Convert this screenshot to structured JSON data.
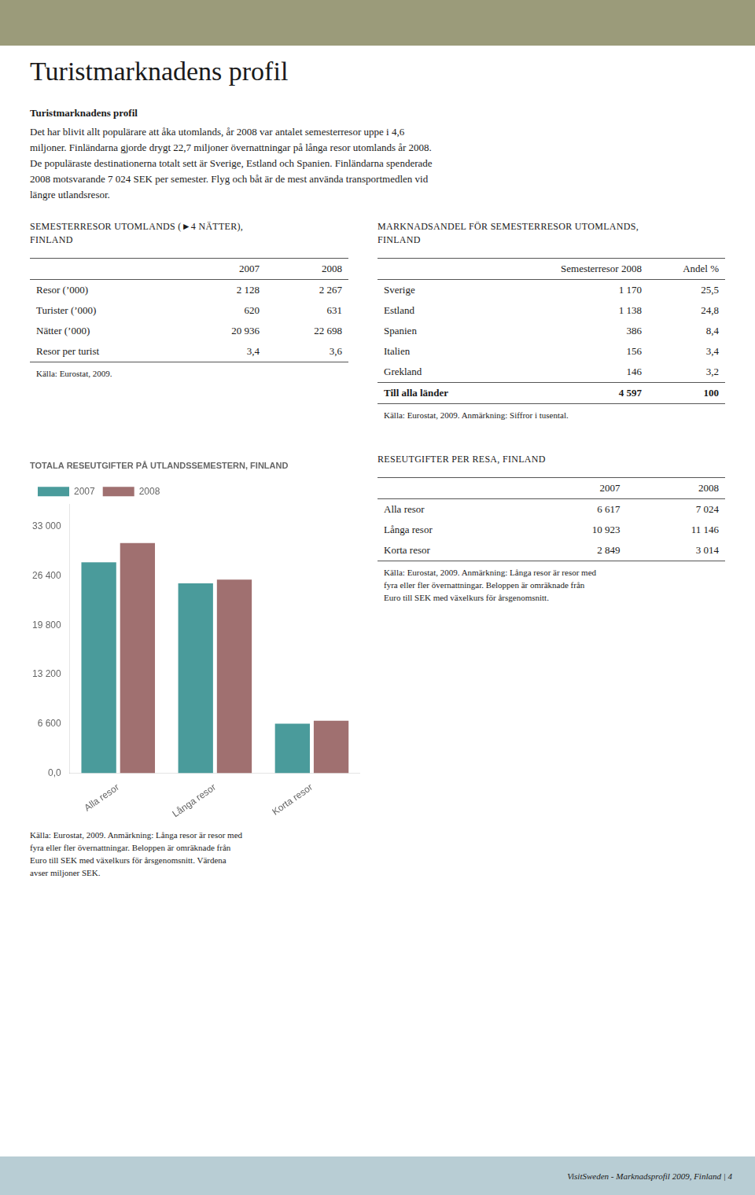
{
  "chart_data": {
    "type": "bar",
    "title": "TOTALA RESEUTGIFTER PÅ UTLANDSSEMESTERN, FINLAND",
    "categories": [
      "Alla resor",
      "Långa resor",
      "Korta resor"
    ],
    "series": [
      {
        "name": "2007",
        "color": "#4a9b9b",
        "values": [
          28217,
          25393,
          6617
        ]
      },
      {
        "name": "2008",
        "color": "#a07070",
        "values": [
          30800,
          25900,
          7024
        ]
      }
    ],
    "ylim": [
      0,
      36000
    ],
    "yticks": [
      {
        "value": 0,
        "label": "0,0"
      },
      {
        "value": 6600,
        "label": "6 600"
      },
      {
        "value": 13200,
        "label": "13 200"
      },
      {
        "value": 19800,
        "label": "19 800"
      },
      {
        "value": 26400,
        "label": "26 400"
      },
      {
        "value": 33000,
        "label": "33 000"
      }
    ],
    "grid": false,
    "legend": "upper left",
    "annotations": [
      "Källa: Eurostat, 2009. Anmärkning: Långa resor är resor med",
      "fyra eller fler övernattningar. Beloppen är omräknade från",
      "Euro till SEK med växelkurs för årsgenomsnitt. Värdena",
      "avser miljoner SEK."
    ]
  },
  "page": {
    "title": "Turistmarknadens profil",
    "intro_bold": "Turistmarknadens profil",
    "intro_lines": [
      "Det har blivit allt populärare att åka utomlands, år 2008 var antalet semesterresor uppe i 4,6",
      "miljoner. Finländarna gjorde drygt 22,7 miljoner övernattningar på långa resor utomlands år 2008.",
      "De populäraste destinationerna totalt sett är Sverige, Estland och Spanien. Finländarna spenderade",
      "2008 motsvarande 7 024 SEK per semester. Flyg och båt är de mest använda transportmedlen vid",
      "längre utlandsresor."
    ],
    "table1": {
      "title": [
        "SEMESTERRESOR UTOMLANDS (►4 NÄTTER),",
        "FINLAND"
      ],
      "headers": [
        "2007",
        "2008"
      ],
      "rows": [
        [
          "Resor (’000)",
          "2 128",
          "2 267"
        ],
        [
          "Turister (’000)",
          "620",
          "631"
        ],
        [
          "Nätter (’000)",
          "20 936",
          "22 698"
        ],
        [
          "Resor per turist",
          "3,4",
          "3,6"
        ]
      ],
      "note": [
        "Källa: Eurostat, 2009."
      ]
    },
    "table2": {
      "title": [
        "MARKNADSANDEL FÖR SEMESTERRESOR UTOMLANDS,",
        "FINLAND"
      ],
      "headers": [
        "Semesterresor 2008",
        "Andel %"
      ],
      "rows": [
        [
          "Sverige",
          "1 170",
          "25,5"
        ],
        [
          "Estland",
          "1 138",
          "24,8"
        ],
        [
          "Spanien",
          "386",
          "8,4"
        ],
        [
          "Italien",
          "156",
          "3,4"
        ],
        [
          "Grekland",
          "146",
          "3,2"
        ],
        [
          "Till alla länder",
          "4 597",
          "100"
        ]
      ],
      "bold_row": 5,
      "note": [
        "Källa: Eurostat, 2009. Anmärkning: Siffror i tusental."
      ]
    },
    "table3": {
      "title": [
        "RESEUTGIFTER PER RESA, FINLAND"
      ],
      "headers": [
        "2007",
        "2008"
      ],
      "rows": [
        [
          "Alla resor",
          "6 617",
          "7 024"
        ],
        [
          "Långa resor",
          "10 923",
          "11 146"
        ],
        [
          "Korta resor",
          "2 849",
          "3 014"
        ]
      ],
      "note": [
        "Källa: Eurostat, 2009. Anmärkning: Långa resor är resor med",
        "fyra eller fler övernattningar. Beloppen är omräknade från",
        "Euro till SEK med växelkurs för årsgenomsnitt."
      ]
    },
    "footer": "VisitSweden - Marknadsprofil 2009, Finland | 4"
  }
}
